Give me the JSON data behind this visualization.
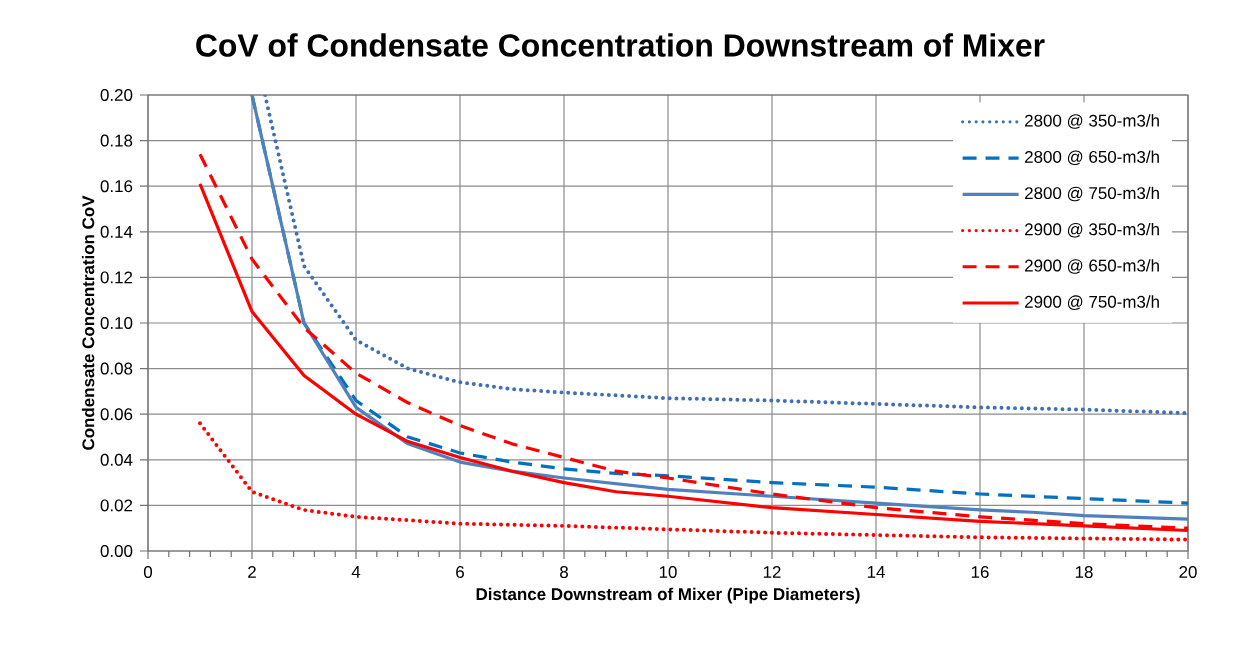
{
  "chart_data": {
    "type": "line",
    "title": "CoV of Condensate Concentration Downstream of Mixer",
    "xlabel": "Distance Downstream of Mixer (Pipe Diameters)",
    "ylabel": "Condensate Concentration CoV",
    "xlim": [
      0,
      20
    ],
    "ylim": [
      0,
      0.2
    ],
    "xticks": [
      0,
      2,
      4,
      6,
      8,
      10,
      12,
      14,
      16,
      18,
      20
    ],
    "yticks": [
      {
        "value": 0,
        "label": "0.00"
      },
      {
        "value": 0.02,
        "label": "0.02"
      },
      {
        "value": 0.04,
        "label": "0.04"
      },
      {
        "value": 0.06,
        "label": "0.06"
      },
      {
        "value": 0.08,
        "label": "0.08"
      },
      {
        "value": 0.1,
        "label": "0.10"
      },
      {
        "value": 0.12,
        "label": "0.12"
      },
      {
        "value": 0.14,
        "label": "0.14"
      },
      {
        "value": 0.16,
        "label": "0.16"
      },
      {
        "value": 0.18,
        "label": "0.18"
      },
      {
        "value": 0.2,
        "label": "0.20"
      }
    ],
    "grid": true,
    "legend": "top right",
    "series": [
      {
        "name": "2800 @ 350-m3/h",
        "color": "#3f6fb5",
        "line_style": "dotted",
        "x": [
          2.25,
          3,
          4,
          5,
          6,
          7,
          8,
          10,
          12,
          14,
          16,
          18,
          20
        ],
        "values": [
          0.2,
          0.125,
          0.0925,
          0.08,
          0.074,
          0.071,
          0.0695,
          0.067,
          0.066,
          0.0645,
          0.063,
          0.062,
          0.0605
        ]
      },
      {
        "name": "2800 @ 650-m3/h",
        "color": "#0070c0",
        "line_style": "dashed",
        "x": [
          2,
          3,
          4,
          5,
          6,
          7,
          8,
          9,
          10,
          12,
          14,
          16,
          18,
          20
        ],
        "values": [
          0.2,
          0.1,
          0.066,
          0.05,
          0.043,
          0.039,
          0.036,
          0.034,
          0.033,
          0.03,
          0.028,
          0.025,
          0.023,
          0.021
        ]
      },
      {
        "name": "2800 @ 750-m3/h",
        "color": "#4f81bd",
        "line_style": "solid",
        "x": [
          2,
          3,
          4,
          5,
          6,
          7,
          8,
          10,
          12,
          14,
          16,
          17,
          18,
          20
        ],
        "values": [
          0.2,
          0.1,
          0.063,
          0.047,
          0.039,
          0.035,
          0.032,
          0.027,
          0.024,
          0.021,
          0.018,
          0.017,
          0.0155,
          0.014
        ]
      },
      {
        "name": "2900 @ 350-m3/h",
        "color": "#ff0000",
        "line_style": "dotted",
        "x": [
          1,
          2,
          3,
          4,
          5,
          6,
          8,
          10,
          12,
          14,
          16,
          18,
          20
        ],
        "values": [
          0.056,
          0.026,
          0.018,
          0.015,
          0.0135,
          0.012,
          0.011,
          0.0095,
          0.008,
          0.007,
          0.006,
          0.0055,
          0.005
        ]
      },
      {
        "name": "2900 @ 650-m3/h",
        "color": "#ff0000",
        "line_style": "dashed",
        "x": [
          1,
          2,
          3,
          4,
          5,
          6,
          7,
          8,
          9,
          10,
          12,
          14,
          16,
          18,
          20
        ],
        "values": [
          0.174,
          0.128,
          0.098,
          0.078,
          0.065,
          0.055,
          0.047,
          0.041,
          0.035,
          0.032,
          0.025,
          0.019,
          0.015,
          0.012,
          0.01
        ]
      },
      {
        "name": "2900 @ 750-m3/h",
        "color": "#ff0000",
        "line_style": "solid",
        "x": [
          1,
          2,
          3,
          4,
          5,
          6,
          7,
          8,
          9,
          10,
          12,
          14,
          16,
          18,
          20
        ],
        "values": [
          0.161,
          0.105,
          0.077,
          0.06,
          0.048,
          0.041,
          0.035,
          0.03,
          0.026,
          0.024,
          0.019,
          0.016,
          0.013,
          0.011,
          0.009
        ]
      }
    ]
  }
}
